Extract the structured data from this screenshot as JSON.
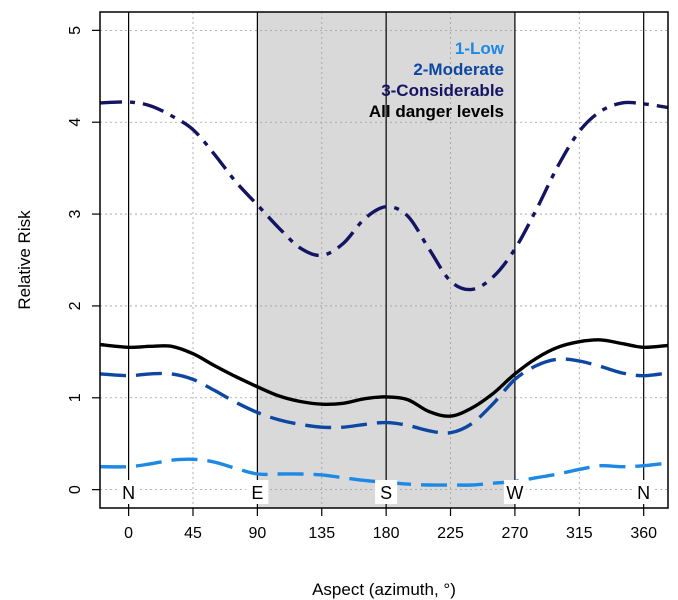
{
  "chart_data": {
    "type": "line",
    "xlabel": "Aspect (azimuth, °)",
    "ylabel": "Relative Risk",
    "xlim": [
      -20,
      377
    ],
    "ylim": [
      -0.2,
      5.2
    ],
    "x_ticks": [
      0,
      45,
      90,
      135,
      180,
      225,
      270,
      315,
      360
    ],
    "y_ticks": [
      0,
      1,
      2,
      3,
      4,
      5
    ],
    "grid": true,
    "legend_position": "top-right",
    "shaded_region": [
      90,
      270
    ],
    "direction_markers": [
      {
        "x": 0,
        "label": "N"
      },
      {
        "x": 90,
        "label": "E"
      },
      {
        "x": 180,
        "label": "S"
      },
      {
        "x": 270,
        "label": "W"
      },
      {
        "x": 360,
        "label": "N"
      }
    ],
    "series": [
      {
        "name": "1-Low",
        "color": "#1e88e5",
        "dash": "long-dash",
        "x": [
          -20,
          0,
          15,
          30,
          45,
          60,
          75,
          90,
          105,
          120,
          135,
          150,
          165,
          180,
          195,
          210,
          225,
          240,
          255,
          270,
          285,
          300,
          315,
          330,
          345,
          360,
          377
        ],
        "y": [
          0.25,
          0.25,
          0.28,
          0.32,
          0.33,
          0.3,
          0.23,
          0.17,
          0.17,
          0.17,
          0.16,
          0.13,
          0.1,
          0.08,
          0.06,
          0.05,
          0.05,
          0.05,
          0.07,
          0.09,
          0.13,
          0.17,
          0.22,
          0.26,
          0.25,
          0.26,
          0.29
        ]
      },
      {
        "name": "2-Moderate",
        "color": "#0d47a1",
        "dash": "long-dash",
        "x": [
          -20,
          0,
          15,
          30,
          45,
          60,
          75,
          90,
          105,
          120,
          135,
          150,
          165,
          180,
          195,
          210,
          225,
          240,
          255,
          270,
          285,
          300,
          315,
          330,
          345,
          360,
          377
        ],
        "y": [
          1.26,
          1.24,
          1.26,
          1.26,
          1.2,
          1.08,
          0.95,
          0.84,
          0.76,
          0.71,
          0.68,
          0.68,
          0.71,
          0.73,
          0.7,
          0.64,
          0.62,
          0.72,
          0.94,
          1.2,
          1.35,
          1.42,
          1.4,
          1.34,
          1.27,
          1.24,
          1.27
        ]
      },
      {
        "name": "3-Considerable",
        "color": "#141463",
        "dash": "dash-dot",
        "x": [
          -20,
          0,
          15,
          30,
          45,
          60,
          75,
          90,
          105,
          120,
          135,
          150,
          165,
          180,
          195,
          210,
          225,
          240,
          255,
          270,
          285,
          300,
          315,
          330,
          345,
          360,
          377
        ],
        "y": [
          4.21,
          4.22,
          4.18,
          4.07,
          3.92,
          3.65,
          3.35,
          3.1,
          2.85,
          2.63,
          2.55,
          2.68,
          2.95,
          3.08,
          2.98,
          2.62,
          2.27,
          2.18,
          2.32,
          2.62,
          3.05,
          3.52,
          3.9,
          4.12,
          4.21,
          4.2,
          4.16
        ]
      },
      {
        "name": "All danger levels",
        "color": "#000000",
        "dash": "solid",
        "x": [
          -20,
          0,
          15,
          30,
          45,
          60,
          75,
          90,
          105,
          120,
          135,
          150,
          165,
          180,
          195,
          210,
          225,
          240,
          255,
          270,
          285,
          300,
          315,
          330,
          345,
          360,
          377
        ],
        "y": [
          1.58,
          1.55,
          1.56,
          1.56,
          1.48,
          1.35,
          1.23,
          1.12,
          1.02,
          0.96,
          0.93,
          0.94,
          0.99,
          1.01,
          0.98,
          0.85,
          0.8,
          0.89,
          1.05,
          1.26,
          1.43,
          1.55,
          1.61,
          1.63,
          1.59,
          1.55,
          1.57
        ]
      }
    ]
  }
}
